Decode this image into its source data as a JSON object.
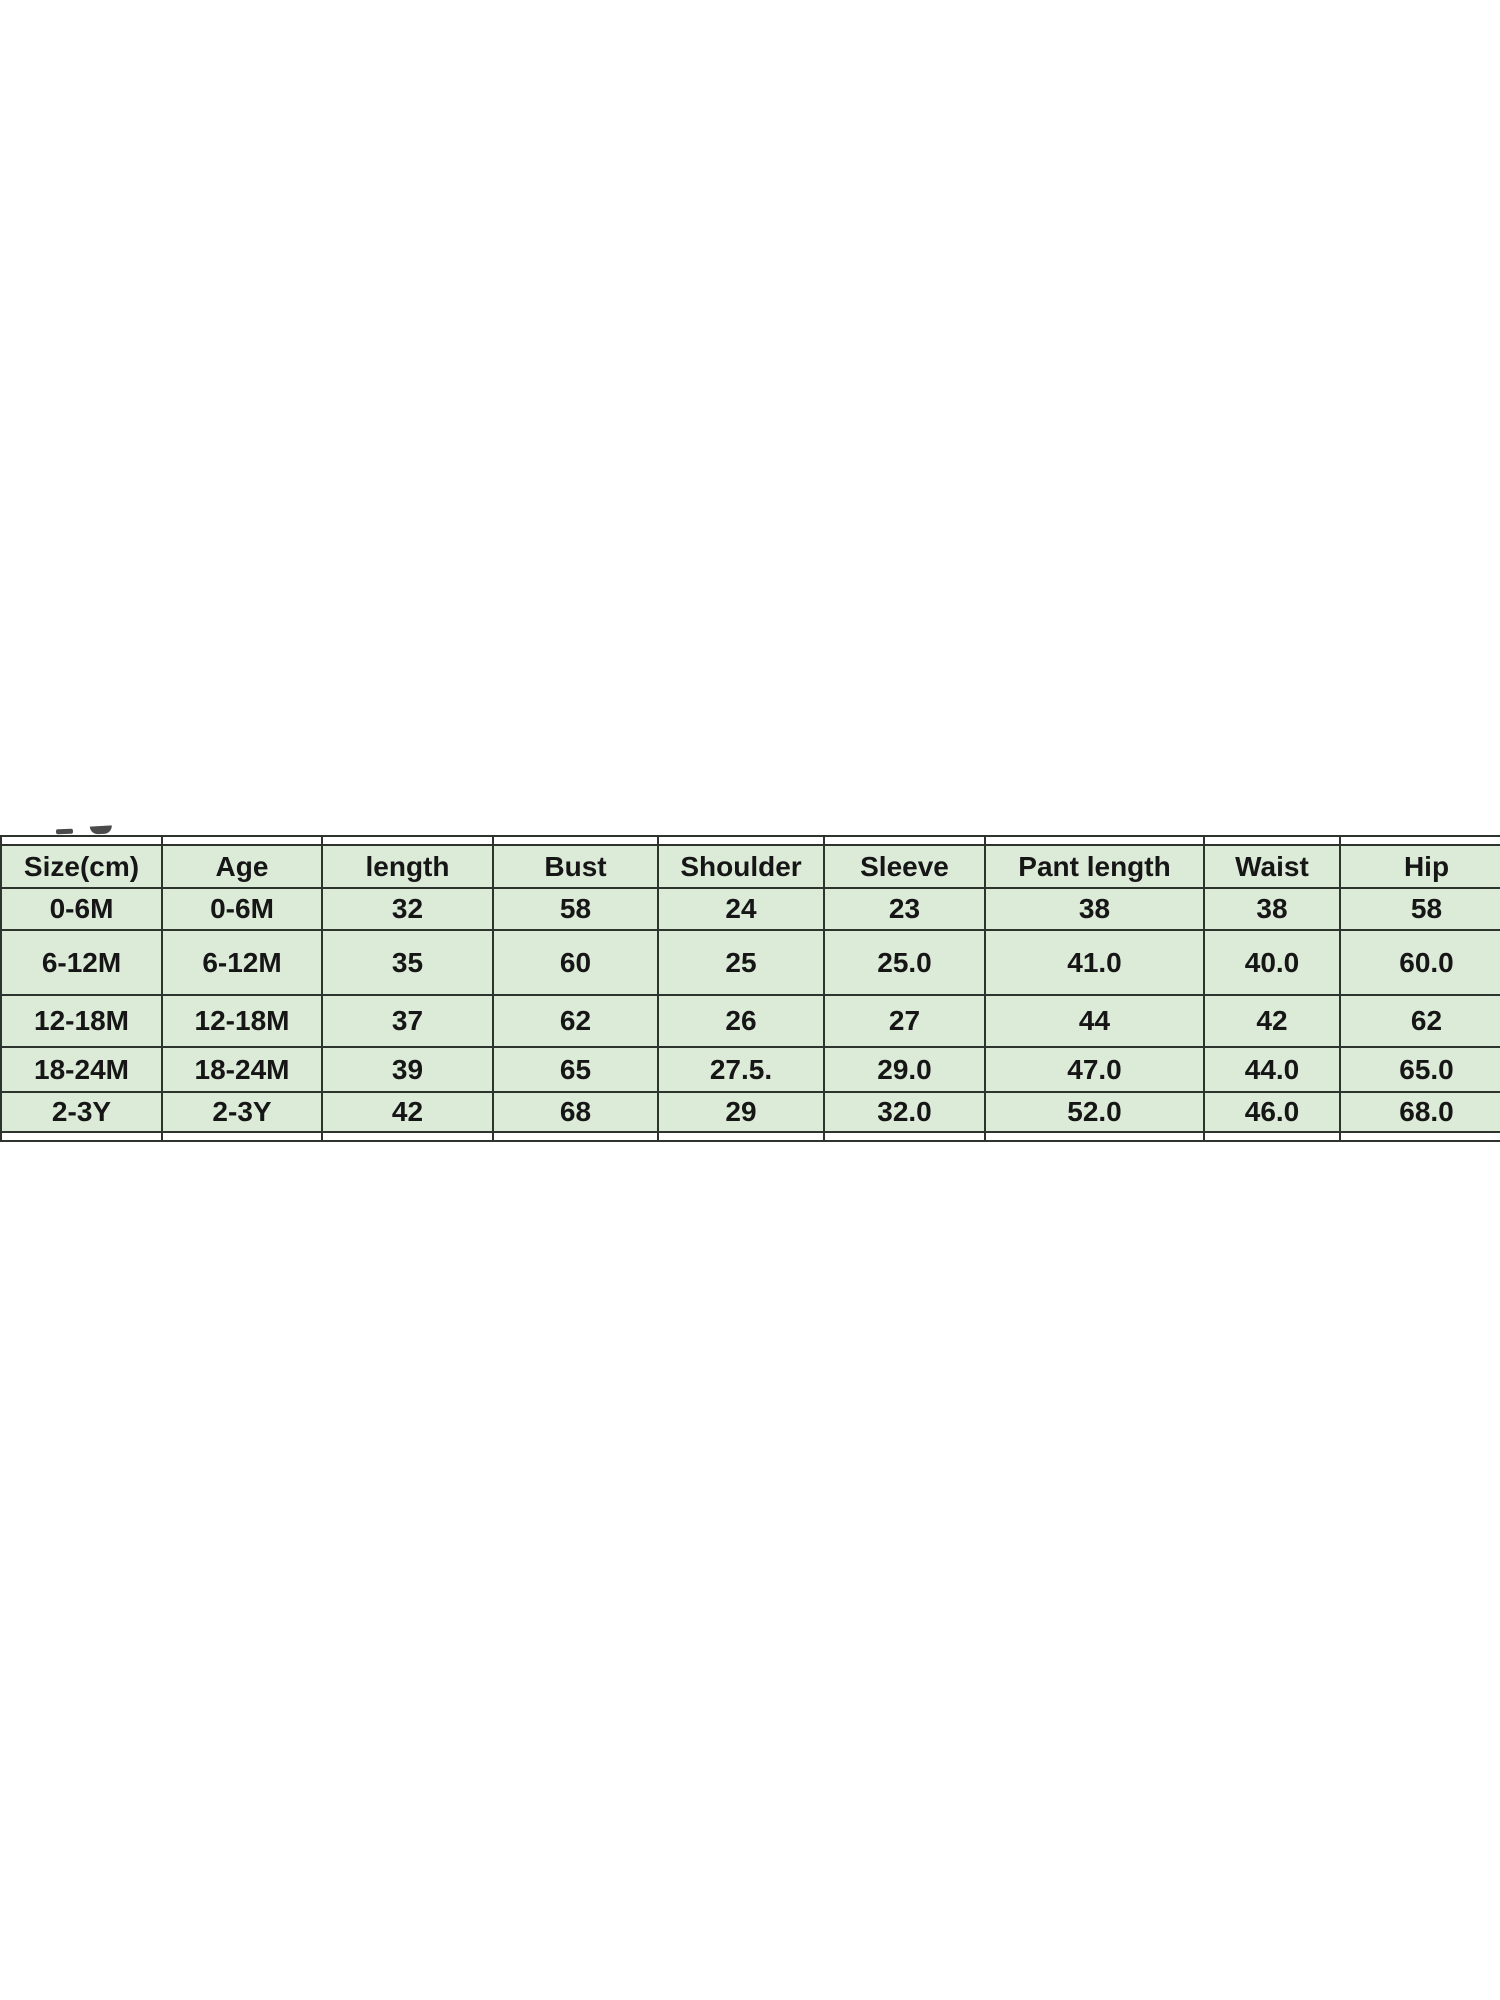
{
  "colors": {
    "page_background": "#ffffff",
    "cell_background": "#dcead8",
    "grid_border": "#2d332d",
    "text": "#161616"
  },
  "chart_data": {
    "type": "table",
    "columns": [
      "Size(cm)",
      "Age",
      "length",
      "Bust",
      "Shoulder",
      "Sleeve",
      "Pant length",
      "Waist",
      "Hip"
    ],
    "rows": [
      [
        "0-6M",
        "0-6M",
        "32",
        "58",
        "24",
        "23",
        "38",
        "38",
        "58"
      ],
      [
        "6-12M",
        "6-12M",
        "35",
        "60",
        "25",
        "25.0",
        "41.0",
        "40.0",
        "60.0"
      ],
      [
        "12-18M",
        "12-18M",
        "37",
        "62",
        "26",
        "27",
        "44",
        "42",
        "62"
      ],
      [
        "18-24M",
        "18-24M",
        "39",
        "65",
        "27.5.",
        "29.0",
        "47.0",
        "44.0",
        "65.0"
      ],
      [
        "2-3Y",
        "2-3Y",
        "42",
        "68",
        "29",
        "32.0",
        "52.0",
        "46.0",
        "68.0"
      ]
    ],
    "layout": {
      "grid": true,
      "legend": "none",
      "header_row": true,
      "table_cropped_right_edge": true
    }
  }
}
